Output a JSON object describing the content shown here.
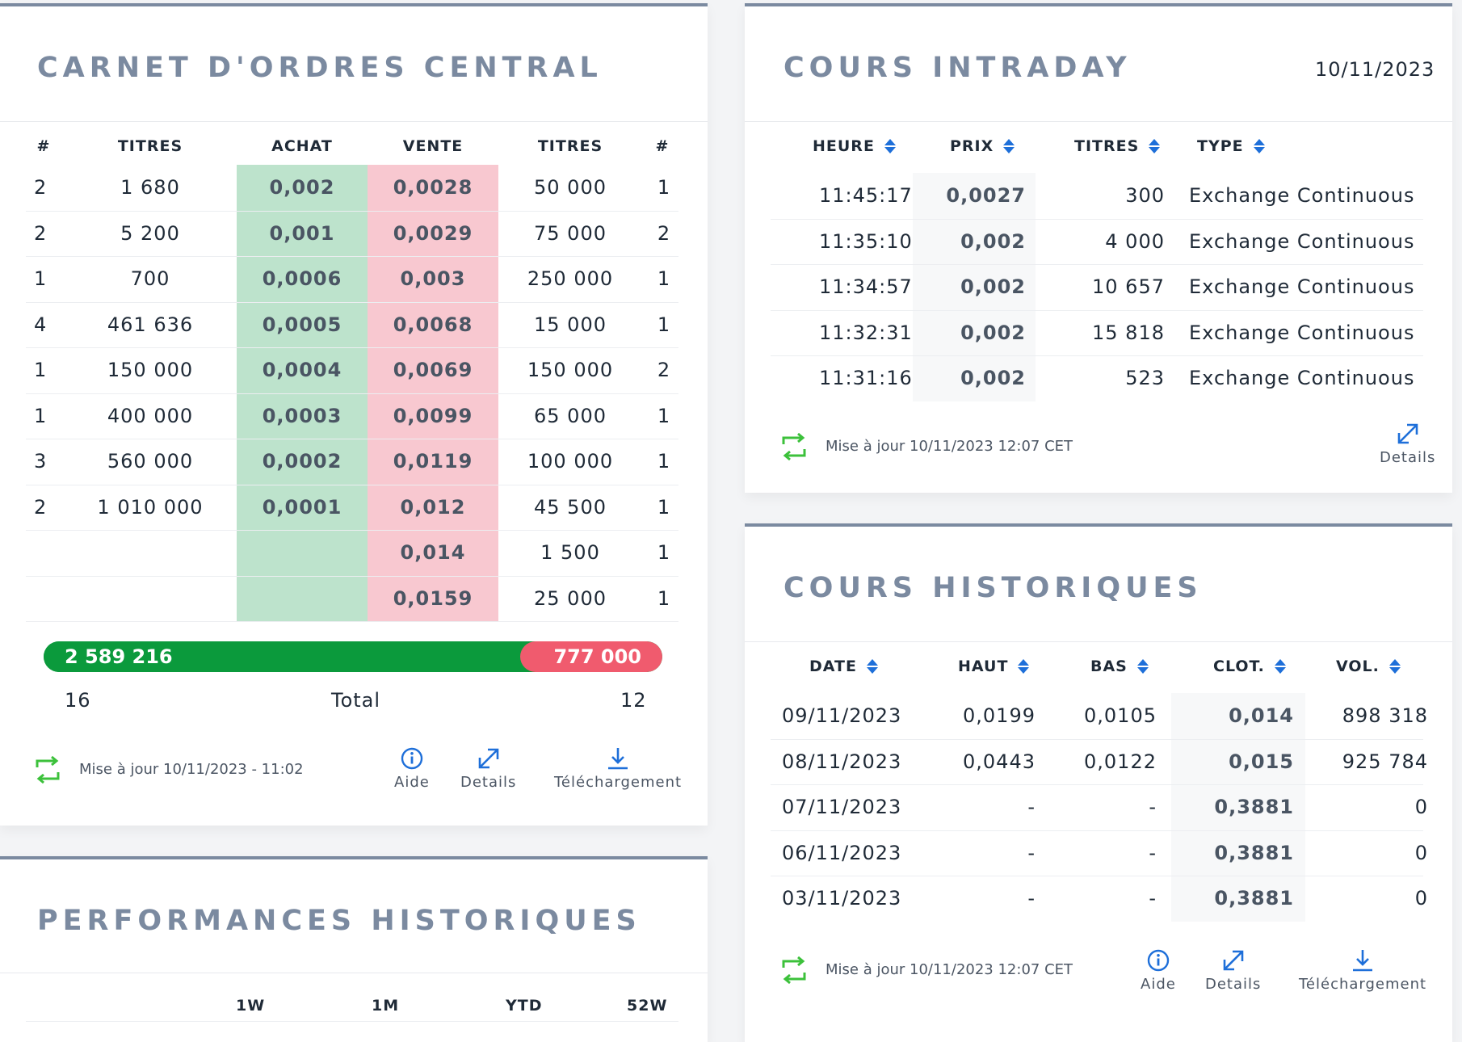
{
  "orderbook": {
    "title": "CARNET D'ORDRES CENTRAL",
    "headers": [
      "#",
      "TITRES",
      "ACHAT",
      "VENTE",
      "TITRES",
      "#"
    ],
    "rows": [
      {
        "nb": "2",
        "titres_a": "1 680",
        "achat": "0,002",
        "vente": "0,0028",
        "titres_v": "50 000",
        "nv": "1"
      },
      {
        "nb": "2",
        "titres_a": "5 200",
        "achat": "0,001",
        "vente": "0,0029",
        "titres_v": "75 000",
        "nv": "2"
      },
      {
        "nb": "1",
        "titres_a": "700",
        "achat": "0,0006",
        "vente": "0,003",
        "titres_v": "250 000",
        "nv": "1"
      },
      {
        "nb": "4",
        "titres_a": "461 636",
        "achat": "0,0005",
        "vente": "0,0068",
        "titres_v": "15 000",
        "nv": "1"
      },
      {
        "nb": "1",
        "titres_a": "150 000",
        "achat": "0,0004",
        "vente": "0,0069",
        "titres_v": "150 000",
        "nv": "2"
      },
      {
        "nb": "1",
        "titres_a": "400 000",
        "achat": "0,0003",
        "vente": "0,0099",
        "titres_v": "65 000",
        "nv": "1"
      },
      {
        "nb": "3",
        "titres_a": "560 000",
        "achat": "0,0002",
        "vente": "0,0119",
        "titres_v": "100 000",
        "nv": "1"
      },
      {
        "nb": "2",
        "titres_a": "1 010 000",
        "achat": "0,0001",
        "vente": "0,012",
        "titres_v": "45 500",
        "nv": "1"
      },
      {
        "nb": "",
        "titres_a": "",
        "achat": "",
        "vente": "0,014",
        "titres_v": "1 500",
        "nv": "1"
      },
      {
        "nb": "",
        "titres_a": "",
        "achat": "",
        "vente": "0,0159",
        "titres_v": "25 000",
        "nv": "1"
      }
    ],
    "buy_total": "2 589 216",
    "sell_total": "777 000",
    "buy_fraction": 0.77,
    "buy_count": "16",
    "total_label": "Total",
    "sell_count": "12",
    "updated": "Mise à jour 10/11/2023 - 11:02",
    "actions": {
      "aide": "Aide",
      "details": "Details",
      "download": "Téléchargement"
    },
    "colors": {
      "buy_bg": "#bde3cc",
      "sell_bg": "#f8c8d0",
      "buy_bar": "#0b9a3c",
      "sell_bar": "#f05b6e"
    }
  },
  "performance": {
    "title": "PERFORMANCES HISTORIQUES",
    "headers": [
      "1W",
      "1M",
      "YTD",
      "52W"
    ]
  },
  "intraday": {
    "title": "COURS INTRADAY",
    "date": "10/11/2023",
    "headers": [
      "HEURE",
      "PRIX",
      "TITRES",
      "TYPE"
    ],
    "rows": [
      {
        "heure": "11:45:17",
        "prix": "0,0027",
        "titres": "300",
        "type": "Exchange Continuous"
      },
      {
        "heure": "11:35:10",
        "prix": "0,002",
        "titres": "4 000",
        "type": "Exchange Continuous"
      },
      {
        "heure": "11:34:57",
        "prix": "0,002",
        "titres": "10 657",
        "type": "Exchange Continuous"
      },
      {
        "heure": "11:32:31",
        "prix": "0,002",
        "titres": "15 818",
        "type": "Exchange Continuous"
      },
      {
        "heure": "11:31:16",
        "prix": "0,002",
        "titres": "523",
        "type": "Exchange Continuous"
      }
    ],
    "updated": "Mise à jour 10/11/2023 12:07 CET",
    "details": "Details"
  },
  "historique": {
    "title": "COURS HISTORIQUES",
    "headers": [
      "DATE",
      "HAUT",
      "BAS",
      "CLOT.",
      "VOL."
    ],
    "rows": [
      {
        "date": "09/11/2023",
        "haut": "0,0199",
        "bas": "0,0105",
        "clot": "0,014",
        "vol": "898 318"
      },
      {
        "date": "08/11/2023",
        "haut": "0,0443",
        "bas": "0,0122",
        "clot": "0,015",
        "vol": "925 784"
      },
      {
        "date": "07/11/2023",
        "haut": "-",
        "bas": "-",
        "clot": "0,3881",
        "vol": "0"
      },
      {
        "date": "06/11/2023",
        "haut": "-",
        "bas": "-",
        "clot": "0,3881",
        "vol": "0"
      },
      {
        "date": "03/11/2023",
        "haut": "-",
        "bas": "-",
        "clot": "0,3881",
        "vol": "0"
      }
    ],
    "updated": "Mise à jour 10/11/2023 12:07 CET",
    "actions": {
      "aide": "Aide",
      "details": "Details",
      "download": "Téléchargement"
    }
  },
  "icons": {
    "refresh": "refresh-icon",
    "info": "info-icon",
    "expand": "expand-icon",
    "download": "download-icon",
    "sort": "sort-icon"
  },
  "accent": "#1e6fd9",
  "refresh_color": "#3cc13b"
}
